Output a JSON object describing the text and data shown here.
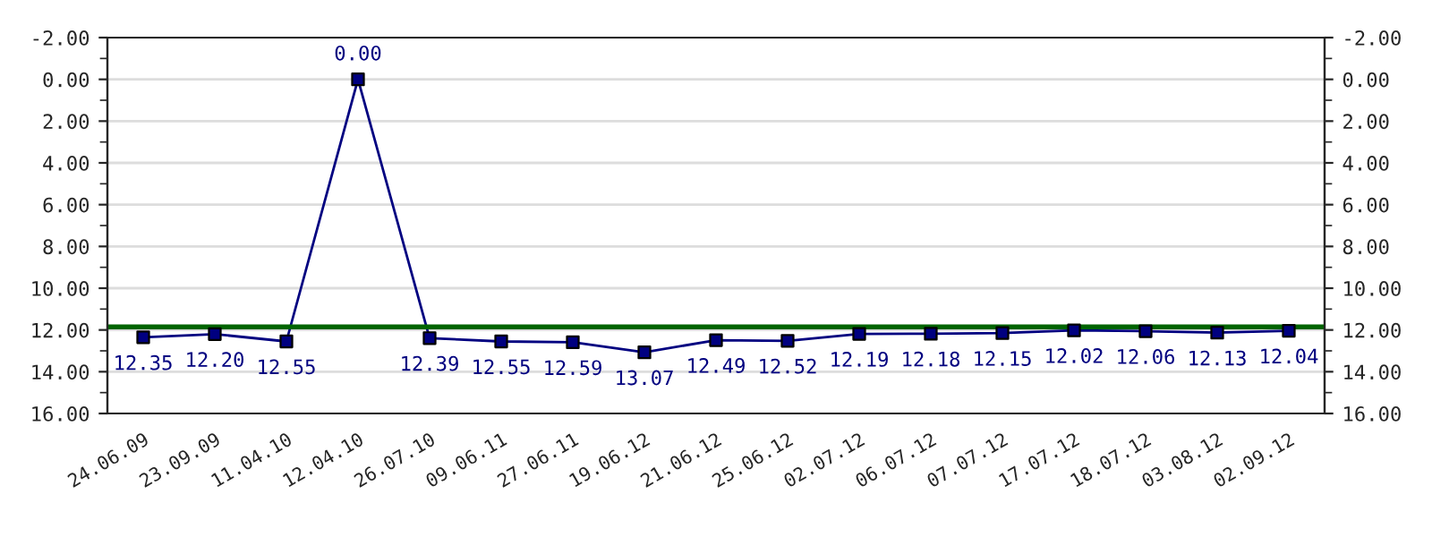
{
  "chart_data": {
    "type": "line",
    "categories": [
      "24.06.09",
      "23.09.09",
      "11.04.10",
      "12.04.10",
      "26.07.10",
      "09.06.11",
      "27.06.11",
      "19.06.12",
      "21.06.12",
      "25.06.12",
      "02.07.12",
      "06.07.12",
      "07.07.12",
      "17.07.12",
      "18.07.12",
      "03.08.12",
      "02.09.12"
    ],
    "series": [
      {
        "color": "#000080",
        "values": [
          12.35,
          12.2,
          12.55,
          0.0,
          12.39,
          12.55,
          12.59,
          13.07,
          12.49,
          12.52,
          12.19,
          12.18,
          12.15,
          12.02,
          12.06,
          12.13,
          12.04
        ],
        "value_labels": [
          "12.35",
          "12.20",
          "12.55",
          "0.00",
          "12.39",
          "12.55",
          "12.59",
          "13.07",
          "12.49",
          "12.52",
          "12.19",
          "12.18",
          "12.15",
          "12.02",
          "12.06",
          "12.13",
          "12.04"
        ]
      }
    ],
    "ylim": [
      16,
      -2
    ],
    "yticks": [
      {
        "value": -2,
        "label": "-2.00"
      },
      {
        "value": 0,
        "label": "0.00"
      },
      {
        "value": 2,
        "label": "2.00"
      },
      {
        "value": 4,
        "label": "4.00"
      },
      {
        "value": 6,
        "label": "6.00"
      },
      {
        "value": 8,
        "label": "8.00"
      },
      {
        "value": 10,
        "label": "10.00"
      },
      {
        "value": 12,
        "label": "12.00"
      },
      {
        "value": 14,
        "label": "14.00"
      },
      {
        "value": 16,
        "label": "16.00"
      }
    ],
    "y2lim": [
      16,
      -2
    ],
    "y2ticks": [
      {
        "value": -2,
        "label": "-2.00"
      },
      {
        "value": 0,
        "label": "0.00"
      },
      {
        "value": 2,
        "label": "2.00"
      },
      {
        "value": 4,
        "label": "4.00"
      },
      {
        "value": 6,
        "label": "6.00"
      },
      {
        "value": 8,
        "label": "8.00"
      },
      {
        "value": 10,
        "label": "10.00"
      },
      {
        "value": 12,
        "label": "12.00"
      },
      {
        "value": 14,
        "label": "14.00"
      },
      {
        "value": 16,
        "label": "16.00"
      }
    ],
    "ref_lines": [
      {
        "axis": "y",
        "value": 11.85,
        "color": "#006400",
        "line_style": "solid"
      }
    ],
    "grid": "y",
    "marker": "square",
    "line_style": "solid",
    "legend": false
  }
}
